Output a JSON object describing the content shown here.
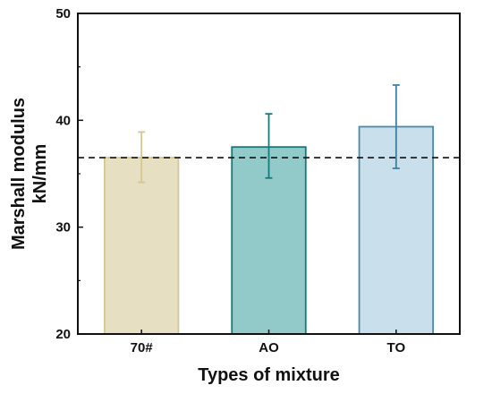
{
  "chart_data": {
    "type": "bar",
    "title": "",
    "xlabel": "Types of mixture",
    "ylabel_line1": "Marshall modulus",
    "ylabel_line2": "kN/mm",
    "categories": [
      "70#",
      "AO",
      "TO"
    ],
    "values": [
      36.5,
      37.5,
      39.4
    ],
    "error_low": [
      34.2,
      34.6,
      35.5
    ],
    "error_high": [
      38.9,
      40.6,
      43.3
    ],
    "reference_line": 36.5,
    "ylim": [
      20,
      50
    ],
    "yticks": [
      20,
      30,
      40,
      50
    ],
    "grid": false,
    "legend": "none",
    "bar_fill_colors": [
      "#e6dfc2",
      "#92c9c9",
      "#c9dfeb"
    ],
    "bar_edge_colors": [
      "#d4c890",
      "#157a7a",
      "#4a8aa8"
    ],
    "error_colors": [
      "#d4c890",
      "#157a7a",
      "#3d82a3"
    ]
  }
}
